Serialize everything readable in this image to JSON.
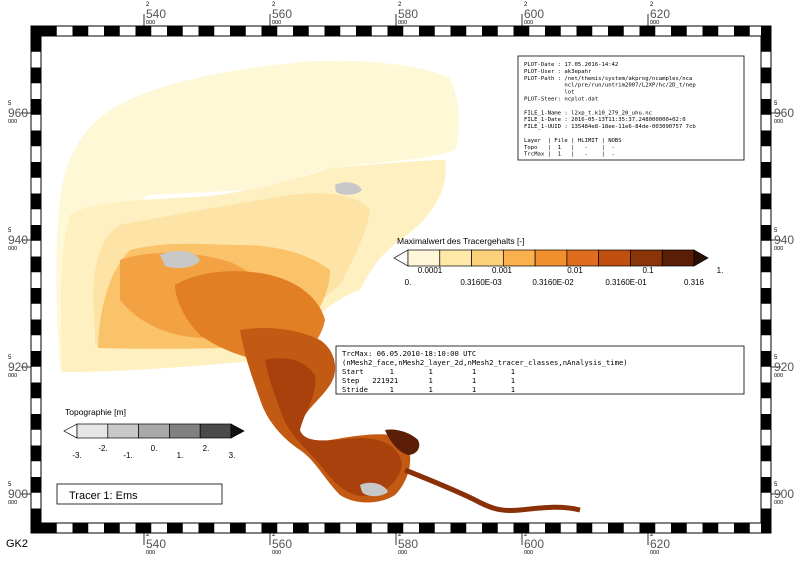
{
  "grid": {
    "x_labels": [
      {
        "top": "2",
        "main": "540",
        "sub": "000"
      },
      {
        "top": "2",
        "main": "560",
        "sub": "000"
      },
      {
        "top": "2",
        "main": "580",
        "sub": "000"
      },
      {
        "top": "2",
        "main": "600",
        "sub": "000"
      },
      {
        "top": "2",
        "main": "620",
        "sub": "000"
      }
    ],
    "y_labels": [
      {
        "top": "5",
        "main": "960",
        "sub": "000"
      },
      {
        "top": "5",
        "main": "940",
        "sub": "000"
      },
      {
        "top": "5",
        "main": "920",
        "sub": "000"
      },
      {
        "top": "5",
        "main": "900",
        "sub": "000"
      }
    ],
    "projection": "GK2"
  },
  "info_box": {
    "lines": [
      "PLOT-Date : 17.05.2016-14:42",
      "PLOT-User : ak3epahr",
      "PLOT-Path : /net/themis/system/akprog/ncamples/nca",
      "            ncl/pre/run/untrim2007/L2XP/hc/2D_t/nep",
      "            lot",
      "PLOT-Steer: ncplot.dat",
      "",
      "FILE_1-Name : l2xp_t.k10_279_20_uhu.nc",
      "FILE_1-Date : 2016-05-13T11:35:37.248000000+02:0",
      "FILE_1-UUID : 135484e8-18ee-11e6-84de-003090757 7cb",
      "",
      "Layer  | File | HLIMIT | NOBS",
      "Topo   |  1   |   -    |  -",
      "TrcMax |  1   |   -    |  -"
    ]
  },
  "legend_tracer": {
    "title": "Maximalwert des Tracergehalts [-]",
    "colors": [
      "#ffffff",
      "#fff7d8",
      "#ffe8a8",
      "#fdd07c",
      "#fbb04e",
      "#f3902e",
      "#e06c1e",
      "#c05010",
      "#8a340a",
      "#5a1e06",
      "#2a1004"
    ],
    "labels_upper": [
      "0.0001",
      "0.001",
      "0.01",
      "0.1",
      "1."
    ],
    "labels_lower": [
      "0.",
      "0.3160E-03",
      "0.3160E-02",
      "0.3160E-01",
      "0.316"
    ]
  },
  "data_box": {
    "lines": [
      "TrcMax: 06.05.2010-18:10:00 UTC",
      "(nMesh2_face,nMesh2_layer_2d,nMesh2_tracer_classes,nAnalysis_time)",
      "Start      1        1         1        1",
      "Step   221921       1         1        1",
      "Stride     1        1         1        1"
    ]
  },
  "legend_topo": {
    "title": "Topographie [m]",
    "colors": [
      "#ffffff",
      "#e6e6e6",
      "#c8c8c8",
      "#a8a8a8",
      "#808080",
      "#4a4a4a",
      "#111111"
    ],
    "labels": [
      "-3.",
      "-2.",
      "-1.",
      "0.",
      "1.",
      "2.",
      "3."
    ]
  },
  "tracer_label": "Tracer 1: Ems",
  "map_colors": {
    "pale": "#fff8d6",
    "light": "#fef0c0",
    "light2": "#fde3a6",
    "mid": "#fbc369",
    "orange": "#f3a243",
    "dark_orange": "#e27f24",
    "brown1": "#c25a13",
    "brown2": "#a8410c",
    "brown3": "#8a3009",
    "brown4": "#5c1e06",
    "grey": "#c8c8c8"
  }
}
